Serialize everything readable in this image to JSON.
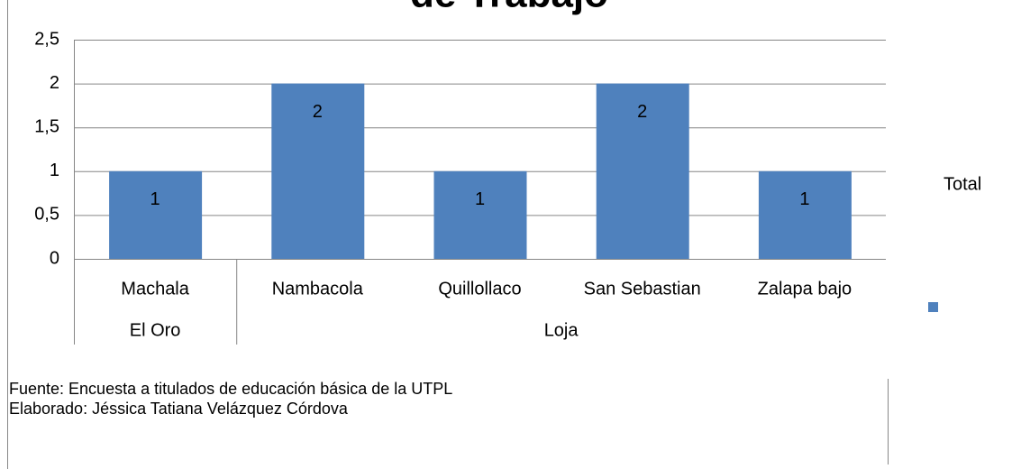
{
  "chart_data": {
    "type": "bar",
    "title": "de Trabajo",
    "categories": [
      "Machala",
      "Nambacola",
      "Quillollaco",
      "San Sebastian",
      "Zalapa bajo"
    ],
    "category_groups": [
      "El Oro",
      "Loja",
      null,
      null,
      null
    ],
    "series": [
      {
        "name": "Total",
        "color": "#4f81bd",
        "values": [
          1,
          2,
          1,
          2,
          1
        ]
      }
    ],
    "ylim": [
      0,
      2.5
    ],
    "yticks": [
      0,
      {
        "value": 0.5,
        "label": "0,5"
      },
      1,
      {
        "value": 1.5,
        "label": "1,5"
      },
      2,
      {
        "value": 2.5,
        "label": "2,5"
      }
    ],
    "grid": true,
    "legend": "right"
  },
  "notes": [
    "Fuente: Encuesta a titulados de educación básica de la UTPL",
    "Elaborado: Jéssica Tatiana Velázquez Córdova"
  ]
}
